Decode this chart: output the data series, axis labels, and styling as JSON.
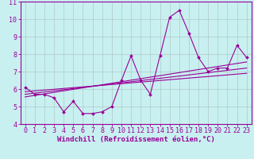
{
  "xlabel": "Windchill (Refroidissement éolien,°C)",
  "bg_color": "#c8f0f0",
  "line_color": "#990099",
  "xlim": [
    -0.5,
    23.5
  ],
  "ylim": [
    4,
    11
  ],
  "xticks": [
    0,
    1,
    2,
    3,
    4,
    5,
    6,
    7,
    8,
    9,
    10,
    11,
    12,
    13,
    14,
    15,
    16,
    17,
    18,
    19,
    20,
    21,
    22,
    23
  ],
  "yticks": [
    4,
    5,
    6,
    7,
    8,
    9,
    10,
    11
  ],
  "data_x": [
    0,
    1,
    2,
    3,
    4,
    5,
    6,
    7,
    8,
    9,
    10,
    11,
    12,
    13,
    14,
    15,
    16,
    17,
    18,
    19,
    20,
    21,
    22,
    23
  ],
  "data_y": [
    6.1,
    5.7,
    5.7,
    5.5,
    4.7,
    5.3,
    4.6,
    4.6,
    4.7,
    5.0,
    6.5,
    7.9,
    6.5,
    5.7,
    7.9,
    10.1,
    10.5,
    9.2,
    7.8,
    7.0,
    7.2,
    7.2,
    8.5,
    7.8
  ],
  "trend1_y_start": 5.55,
  "trend1_y_end": 7.55,
  "trend2_y_start": 5.7,
  "trend2_y_end": 7.2,
  "trend3_y_start": 5.85,
  "trend3_y_end": 6.9,
  "grid_color": "#b0c8c8",
  "xlabel_fontsize": 6.5,
  "tick_fontsize": 6.0
}
